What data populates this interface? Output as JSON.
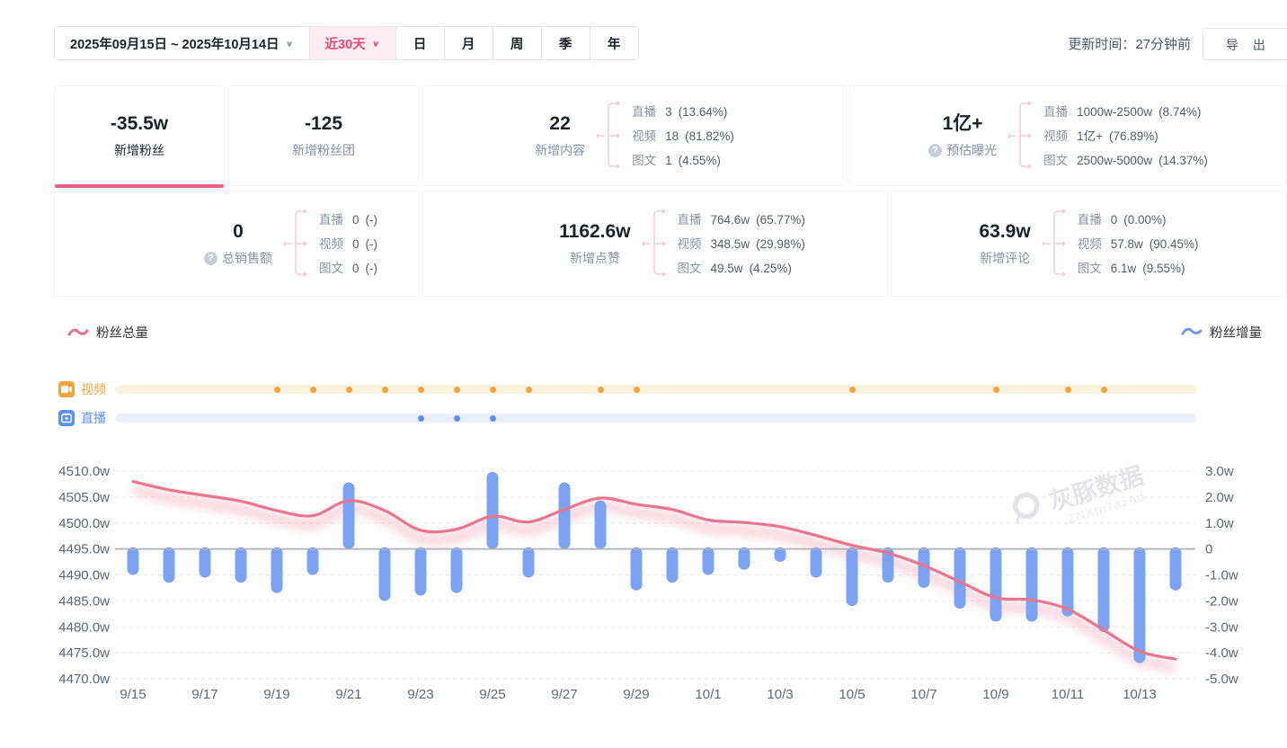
{
  "header": {
    "date_range": "2025年09月15日 ~ 2025年10月14日",
    "quick_range": "近30天",
    "period_tabs": [
      "日",
      "月",
      "周",
      "季",
      "年"
    ],
    "update_time": "更新时间：27分钟前",
    "export_label": "导 出"
  },
  "stats": {
    "row1": [
      {
        "value": "-35.5w",
        "label": "新增粉丝",
        "active": true
      },
      {
        "value": "-125",
        "label": "新增粉丝团"
      },
      {
        "value": "22",
        "label": "新增内容",
        "breakdown": [
          {
            "name": "直播",
            "value": "3",
            "pct": "(13.64%)"
          },
          {
            "name": "视频",
            "value": "18",
            "pct": "(81.82%)"
          },
          {
            "name": "图文",
            "value": "1",
            "pct": "(4.55%)"
          }
        ]
      },
      {
        "value": "1亿+",
        "label": "预估曝光",
        "help": true,
        "breakdown": [
          {
            "name": "直播",
            "value": "1000w-2500w",
            "pct": "(8.74%)"
          },
          {
            "name": "视频",
            "value": "1亿+",
            "pct": "(76.89%)"
          },
          {
            "name": "图文",
            "value": "2500w-5000w",
            "pct": "(14.37%)"
          }
        ]
      }
    ],
    "row2": [
      {
        "value": "0",
        "label": "总销售额",
        "help": true,
        "breakdown": [
          {
            "name": "直播",
            "value": "0",
            "pct": "(-)"
          },
          {
            "name": "视频",
            "value": "0",
            "pct": "(-)"
          },
          {
            "name": "图文",
            "value": "0",
            "pct": "(-)"
          }
        ]
      },
      {
        "value": "1162.6w",
        "label": "新增点赞",
        "breakdown": [
          {
            "name": "直播",
            "value": "764.6w",
            "pct": "(65.77%)"
          },
          {
            "name": "视频",
            "value": "348.5w",
            "pct": "(29.98%)"
          },
          {
            "name": "图文",
            "value": "49.5w",
            "pct": "(4.25%)"
          }
        ]
      },
      {
        "value": "63.9w",
        "label": "新增评论",
        "breakdown": [
          {
            "name": "直播",
            "value": "0",
            "pct": "(0.00%)"
          },
          {
            "name": "视频",
            "value": "57.8w",
            "pct": "(90.45%)"
          },
          {
            "name": "图文",
            "value": "6.1w",
            "pct": "(9.55%)"
          }
        ]
      }
    ]
  },
  "legend": {
    "left": "粉丝总量",
    "right": "粉丝增量"
  },
  "timeline": {
    "rows": [
      {
        "label": "视频",
        "dot_days": [
          4,
          5,
          6,
          7,
          8,
          9,
          10,
          11,
          13,
          14,
          20,
          24,
          26,
          27
        ]
      },
      {
        "label": "直播",
        "dot_days": [
          8,
          9,
          10
        ]
      }
    ]
  },
  "chart_data": {
    "type": "line+bar",
    "x": [
      "9/15",
      "9/16",
      "9/17",
      "9/18",
      "9/19",
      "9/20",
      "9/21",
      "9/22",
      "9/23",
      "9/24",
      "9/25",
      "9/26",
      "9/27",
      "9/28",
      "9/29",
      "9/30",
      "10/1",
      "10/2",
      "10/3",
      "10/4",
      "10/5",
      "10/6",
      "10/7",
      "10/8",
      "10/9",
      "10/10",
      "10/11",
      "10/12",
      "10/13",
      "10/14"
    ],
    "x_tick_every": 2,
    "series": [
      {
        "name": "粉丝总量",
        "type": "line",
        "axis": "left",
        "color": "#e8768f",
        "values": [
          4508.0,
          4506.4,
          4505.3,
          4504.2,
          4502.4,
          4501.4,
          4504.3,
          4502.4,
          4498.6,
          4498.8,
          4501.3,
          4500.2,
          4502.6,
          4504.8,
          4503.6,
          4502.6,
          4500.6,
          4500.1,
          4499.3,
          4497.6,
          4495.7,
          4494.2,
          4491.8,
          4488.7,
          4485.6,
          4485.2,
          4483.4,
          4479.4,
          4475.3,
          4473.8
        ]
      },
      {
        "name": "粉丝增量",
        "type": "bar",
        "axis": "right",
        "color": "#7ca2f3",
        "values": [
          -1.0,
          -1.3,
          -1.1,
          -1.3,
          -1.7,
          -1.0,
          2.5,
          -2.0,
          -1.8,
          -1.7,
          2.9,
          -1.1,
          2.5,
          1.8,
          -1.6,
          -1.3,
          -1.0,
          -0.8,
          -0.5,
          -1.1,
          -2.2,
          -1.3,
          -1.5,
          -2.3,
          -2.8,
          -2.8,
          -2.6,
          -3.2,
          -4.4,
          -1.6
        ]
      }
    ],
    "left_axis": {
      "min": 4470,
      "max": 4510,
      "step": 5,
      "unit": "w",
      "labels": [
        "4510.0w",
        "4505.0w",
        "4500.0w",
        "4495.0w",
        "4490.0w",
        "4485.0w",
        "4480.0w",
        "4475.0w",
        "4470.0w"
      ]
    },
    "right_axis": {
      "min": -5,
      "max": 3,
      "step": 1,
      "zero_at_left_value": 4495,
      "labels": [
        "3.0w",
        "2.0w",
        "1.0w",
        "0",
        "-1.0w",
        "-2.0w",
        "-3.0w",
        "-4.0w",
        "-5.0w"
      ]
    },
    "grid": "dashed-horizontal"
  },
  "watermark": {
    "brand": "灰豚数据",
    "code": "ZNXtn7azAd"
  },
  "colors": {
    "accent_pink": "#f2456f",
    "line_pink": "#e8768f",
    "bar_blue": "#7ca2f3",
    "video_orange": "#f0a53c",
    "live_blue": "#5b8ff9",
    "zero_line": "#adb0b8"
  }
}
